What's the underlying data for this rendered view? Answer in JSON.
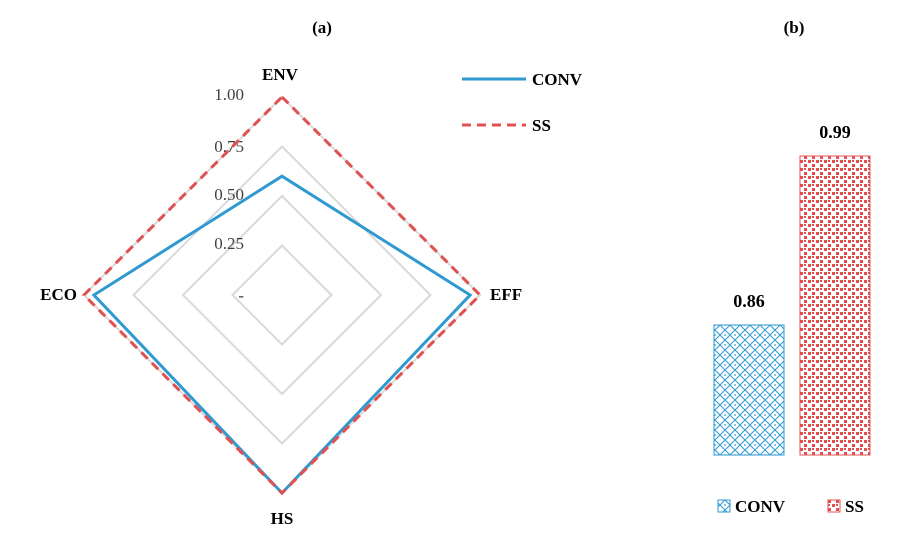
{
  "chart_data": [
    {
      "type": "radar",
      "title": "(a)",
      "axes": [
        "ENV",
        "EFF",
        "HS",
        "ECO"
      ],
      "tick_labels": [
        "1.00",
        "0.75",
        "0.50",
        "0.25",
        "-"
      ],
      "grid_levels": [
        0.25,
        0.5,
        0.75,
        1.0
      ],
      "rlim": [
        0,
        1
      ],
      "series": [
        {
          "name": "CONV",
          "values": [
            0.6,
            0.95,
            1.0,
            0.95
          ],
          "color": "#2e9ad0",
          "style": "solid"
        },
        {
          "name": "SS",
          "values": [
            1.0,
            1.0,
            1.0,
            1.0
          ],
          "color": "#e05050",
          "style": "dashed"
        }
      ],
      "legend_position": "top-right"
    },
    {
      "type": "bar",
      "title": "(b)",
      "categories": [
        "CONV",
        "SS"
      ],
      "values": [
        0.86,
        0.99
      ],
      "data_labels": [
        "0.86",
        "0.99"
      ],
      "colors": [
        "#2e9ad0",
        "#e05050"
      ],
      "ylim": [
        0.76,
        1.0
      ],
      "legend_position": "bottom"
    }
  ]
}
